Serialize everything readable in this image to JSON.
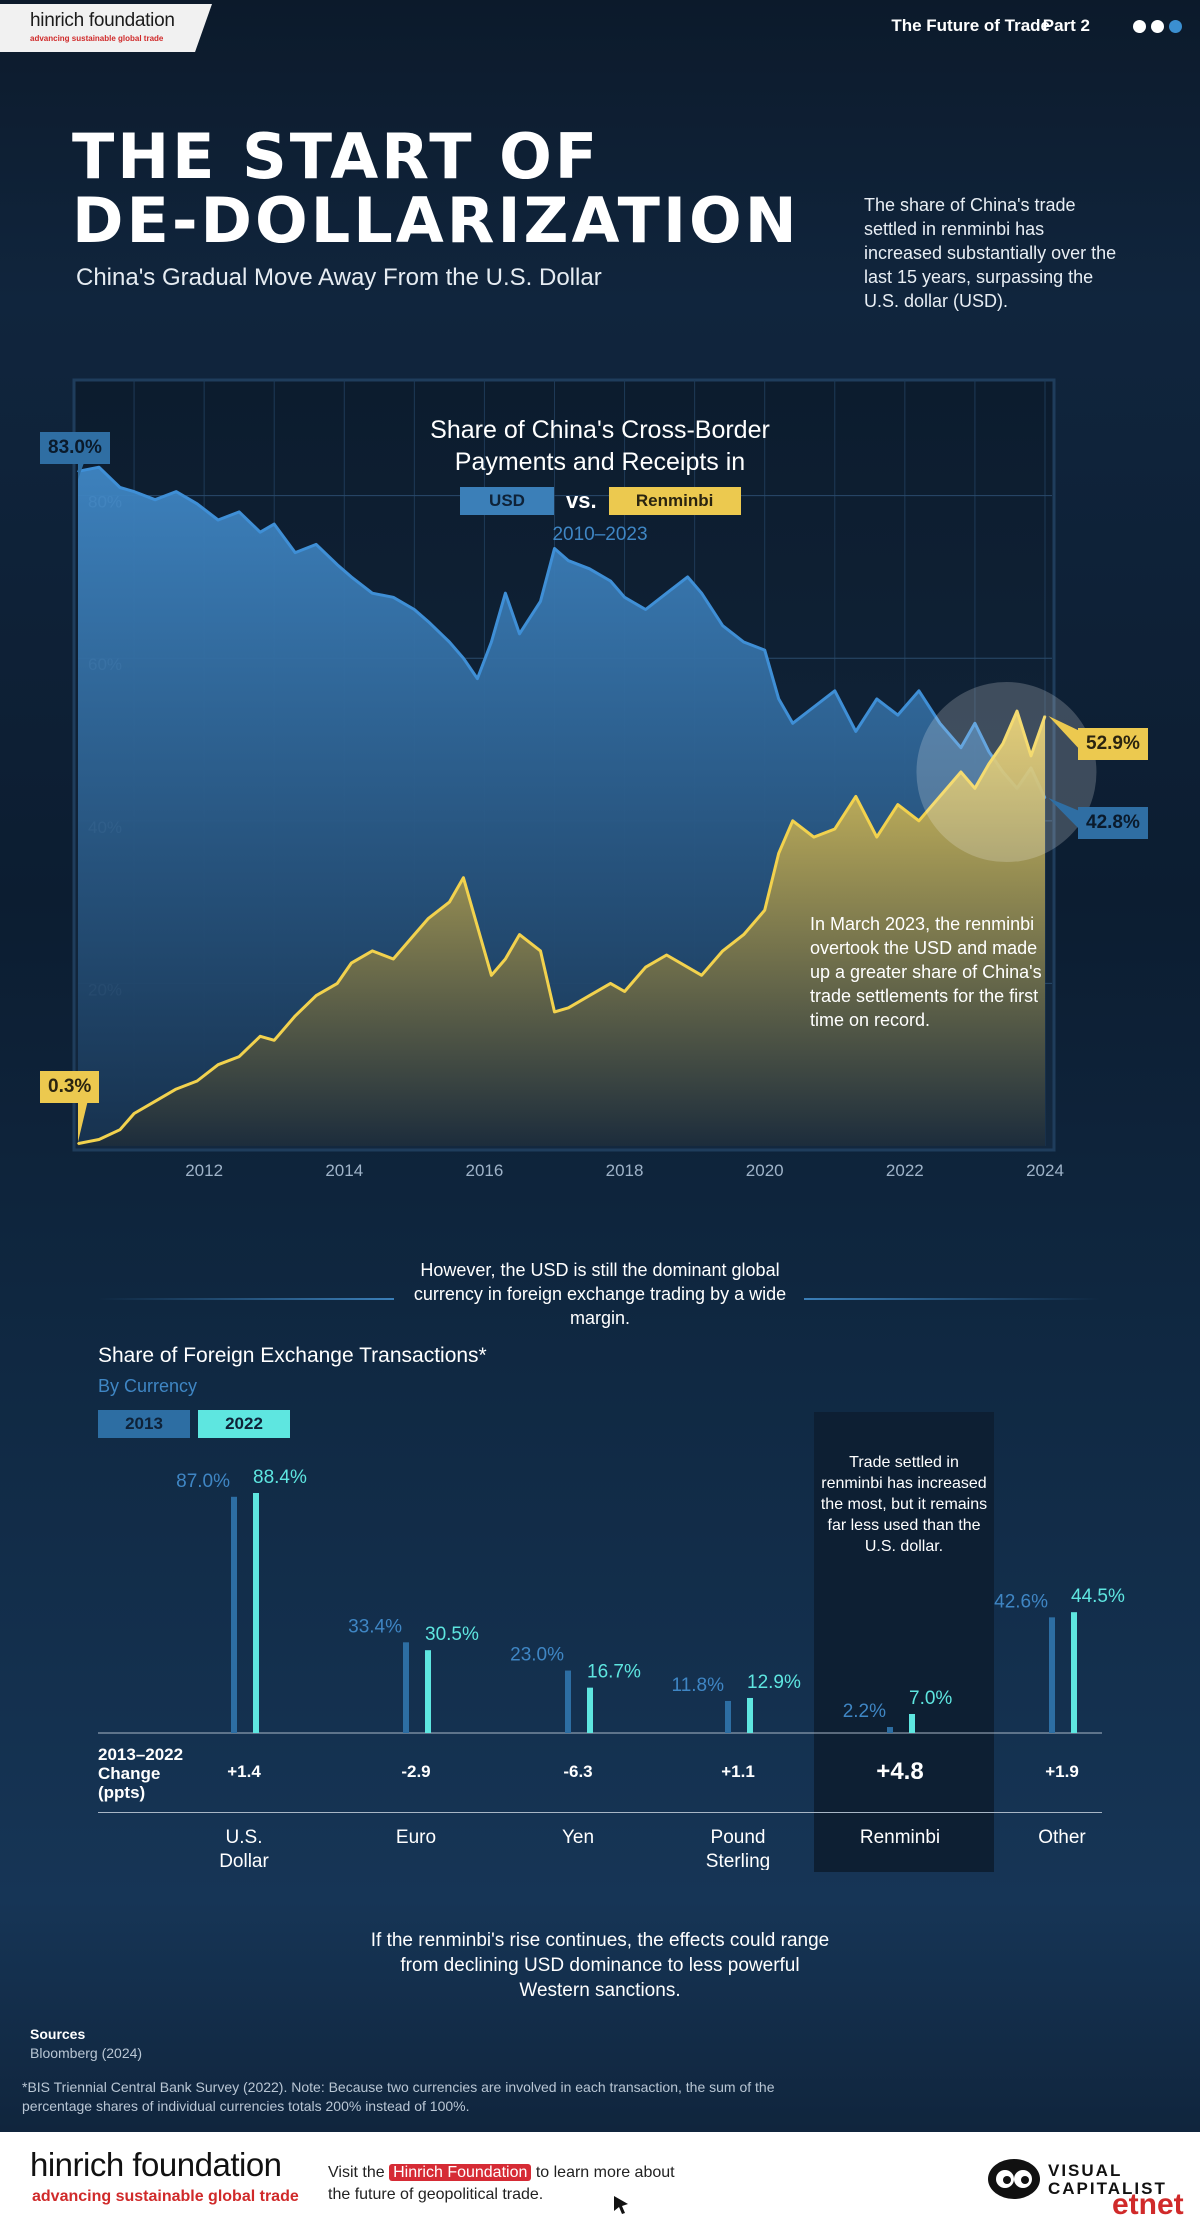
{
  "header": {
    "logo_main": "hinrich foundation",
    "logo_sub": "advancing sustainable global trade",
    "series": "The Future of Trade",
    "part": "Part 2"
  },
  "title": {
    "line1": "THE START OF",
    "line2": "DE-DOLLARIZATION",
    "subtitle": "China's Gradual Move Away From the U.S. Dollar",
    "intro": "The share of China's trade settled in renminbi has increased substantially over the last 15 years, surpassing the U.S. dollar (USD)."
  },
  "chart1_text": {
    "title_line1": "Share of China's Cross-Border",
    "title_line2": "Payments and Receipts in",
    "legend_usd": "USD",
    "legend_vs": "vs.",
    "legend_rmb": "Renminbi",
    "years": "2010–2023",
    "usd_start": "83.0%",
    "rmb_start": "0.3%",
    "usd_end": "42.8%",
    "rmb_end": "52.9%",
    "note": "In March 2023, the renminbi overtook the USD and made up a greater share of China's trade settlements for the first time on record.",
    "y_ticks": [
      "80%",
      "60%",
      "40%",
      "20%"
    ],
    "x_ticks": [
      "2012",
      "2014",
      "2016",
      "2018",
      "2020",
      "2022",
      "2024"
    ]
  },
  "transition": "However, the USD is still the dominant global currency in foreign exchange trading by a wide margin.",
  "chart2_text": {
    "title": "Share of Foreign Exchange Transactions*",
    "subtitle": "By Currency",
    "legend_2013": "2013",
    "legend_2022": "2022",
    "rmb_note": "Trade settled in renminbi has increased the most, but it remains far less used than the U.S. dollar.",
    "change_label_1": "2013–2022",
    "change_label_2": "Change",
    "change_label_3": "(ppts)"
  },
  "outro": "If the renminbi's rise continues, the effects could range from declining USD dominance to less powerful Western sanctions.",
  "sources": {
    "heading": "Sources",
    "source1": "Bloomberg (2024)",
    "note": "*BIS Triennial Central Bank Survey (2022). Note: Because two currencies are involved in each transaction, the sum of the percentage shares of individual currencies totals 200% instead of 100%."
  },
  "footer": {
    "logo_main": "hinrich foundation",
    "logo_sub": "advancing sustainable global trade",
    "visit_pre": "Visit the",
    "visit_highlight": "Hinrich Foundation",
    "visit_post": "to learn more about the future of geopolitical trade.",
    "vc_line1": "VISUAL",
    "vc_line2": "CAPITALIST",
    "etnet": "etnet"
  },
  "colors": {
    "usd": "#3b7fb8",
    "rmb": "#ecc94f",
    "bar2013": "#2d6ea3",
    "bar2022": "#5ee6e0",
    "background": "#0b1d30"
  },
  "chart_data": [
    {
      "type": "area",
      "title": "Share of China's Cross-Border Payments and Receipts in USD vs. Renminbi",
      "subtitle": "2010–2023",
      "ylim": [
        0,
        85
      ],
      "xlim": [
        2010.2,
        2024.1
      ],
      "series": [
        {
          "name": "USD",
          "x": [
            2010.2,
            2010.5,
            2010.8,
            2011.0,
            2011.3,
            2011.6,
            2011.9,
            2012.2,
            2012.5,
            2012.8,
            2013.0,
            2013.3,
            2013.6,
            2013.9,
            2014.1,
            2014.4,
            2014.7,
            2015.0,
            2015.2,
            2015.5,
            2015.7,
            2015.9,
            2016.1,
            2016.3,
            2016.5,
            2016.8,
            2017.0,
            2017.2,
            2017.5,
            2017.8,
            2018.0,
            2018.3,
            2018.6,
            2018.9,
            2019.1,
            2019.4,
            2019.7,
            2020.0,
            2020.2,
            2020.4,
            2020.7,
            2021.0,
            2021.3,
            2021.6,
            2021.9,
            2022.2,
            2022.5,
            2022.8,
            2023.0,
            2023.2,
            2023.4,
            2023.6,
            2023.8,
            2024.0
          ],
          "values": [
            83.0,
            83.5,
            81.0,
            80.5,
            79.5,
            80.5,
            79.0,
            77.0,
            78.0,
            75.5,
            76.5,
            73.0,
            74.0,
            71.5,
            70.0,
            68.0,
            67.5,
            66.0,
            64.5,
            62.0,
            60.0,
            57.5,
            62.0,
            68.0,
            63.0,
            67.0,
            73.5,
            72.0,
            71.0,
            69.5,
            67.5,
            66.0,
            68.0,
            70.0,
            68.0,
            64.0,
            62.0,
            61.0,
            55.0,
            52.0,
            54.0,
            56.0,
            51.0,
            55.0,
            53.0,
            56.0,
            52.0,
            49.0,
            52.0,
            48.5,
            46.0,
            44.0,
            46.5,
            42.8
          ]
        },
        {
          "name": "Renminbi",
          "x": [
            2010.2,
            2010.5,
            2010.8,
            2011.0,
            2011.3,
            2011.6,
            2011.9,
            2012.2,
            2012.5,
            2012.8,
            2013.0,
            2013.3,
            2013.6,
            2013.9,
            2014.1,
            2014.4,
            2014.7,
            2015.0,
            2015.2,
            2015.5,
            2015.7,
            2015.9,
            2016.1,
            2016.3,
            2016.5,
            2016.8,
            2017.0,
            2017.2,
            2017.5,
            2017.8,
            2018.0,
            2018.3,
            2018.6,
            2018.9,
            2019.1,
            2019.4,
            2019.7,
            2020.0,
            2020.2,
            2020.4,
            2020.7,
            2021.0,
            2021.3,
            2021.6,
            2021.9,
            2022.2,
            2022.5,
            2022.8,
            2023.0,
            2023.2,
            2023.4,
            2023.6,
            2023.8,
            2024.0
          ],
          "values": [
            0.3,
            0.8,
            2.0,
            4.0,
            5.5,
            7.0,
            8.0,
            10.0,
            11.0,
            13.5,
            13.0,
            16.0,
            18.5,
            20.0,
            22.5,
            24.0,
            23.0,
            26.0,
            28.0,
            30.0,
            33.0,
            27.0,
            21.0,
            23.0,
            26.0,
            24.0,
            16.5,
            17.0,
            18.5,
            20.0,
            19.0,
            22.0,
            23.5,
            22.0,
            21.0,
            24.0,
            26.0,
            29.0,
            36.0,
            40.0,
            38.0,
            39.0,
            43.0,
            38.0,
            42.0,
            40.0,
            43.0,
            46.0,
            44.0,
            47.0,
            49.5,
            53.5,
            48.0,
            52.9
          ]
        }
      ],
      "y_ticks": [
        "80%",
        "60%",
        "40%",
        "20%"
      ],
      "x_ticks": [
        "2012",
        "2014",
        "2016",
        "2018",
        "2020",
        "2022",
        "2024"
      ],
      "annotations": [
        "83.0%",
        "0.3%",
        "52.9%",
        "42.8%"
      ],
      "grid": true
    },
    {
      "type": "bar",
      "title": "Share of Foreign Exchange Transactions*",
      "subtitle": "By Currency",
      "categories": [
        "U.S. Dollar",
        "Euro",
        "Yen",
        "Pound Sterling",
        "Renminbi",
        "Other"
      ],
      "series": [
        {
          "name": "2013",
          "values": [
            87.0,
            33.4,
            23.0,
            11.8,
            2.2,
            42.6
          ],
          "labels": [
            "87.0%",
            "33.4%",
            "23.0%",
            "11.8%",
            "2.2%",
            "42.6%"
          ]
        },
        {
          "name": "2022",
          "values": [
            88.4,
            30.5,
            16.7,
            12.9,
            7.0,
            44.5
          ],
          "labels": [
            "88.4%",
            "30.5%",
            "16.7%",
            "12.9%",
            "7.0%",
            "44.5%"
          ]
        }
      ],
      "change_ppts": [
        "+1.4",
        "-2.9",
        "-6.3",
        "+1.1",
        "+4.8",
        "+1.9"
      ],
      "ylim": [
        0,
        100
      ],
      "grid": false
    }
  ]
}
